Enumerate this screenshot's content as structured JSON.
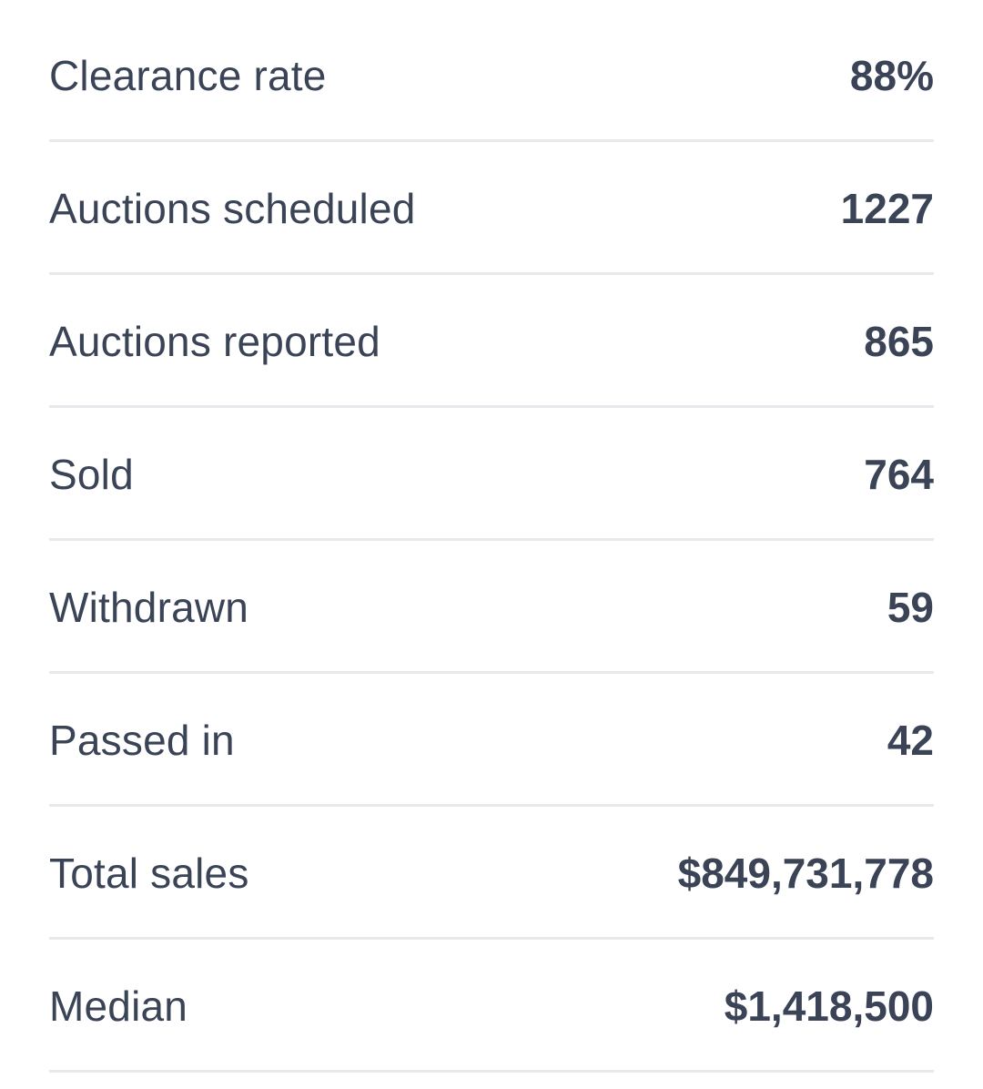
{
  "stats": [
    {
      "label": "Clearance rate",
      "value": "88%"
    },
    {
      "label": "Auctions scheduled",
      "value": "1227"
    },
    {
      "label": "Auctions reported",
      "value": "865"
    },
    {
      "label": "Sold",
      "value": "764"
    },
    {
      "label": "Withdrawn",
      "value": "59"
    },
    {
      "label": "Passed in",
      "value": "42"
    },
    {
      "label": "Total sales",
      "value": "$849,731,778"
    },
    {
      "label": "Median",
      "value": "$1,418,500"
    }
  ]
}
